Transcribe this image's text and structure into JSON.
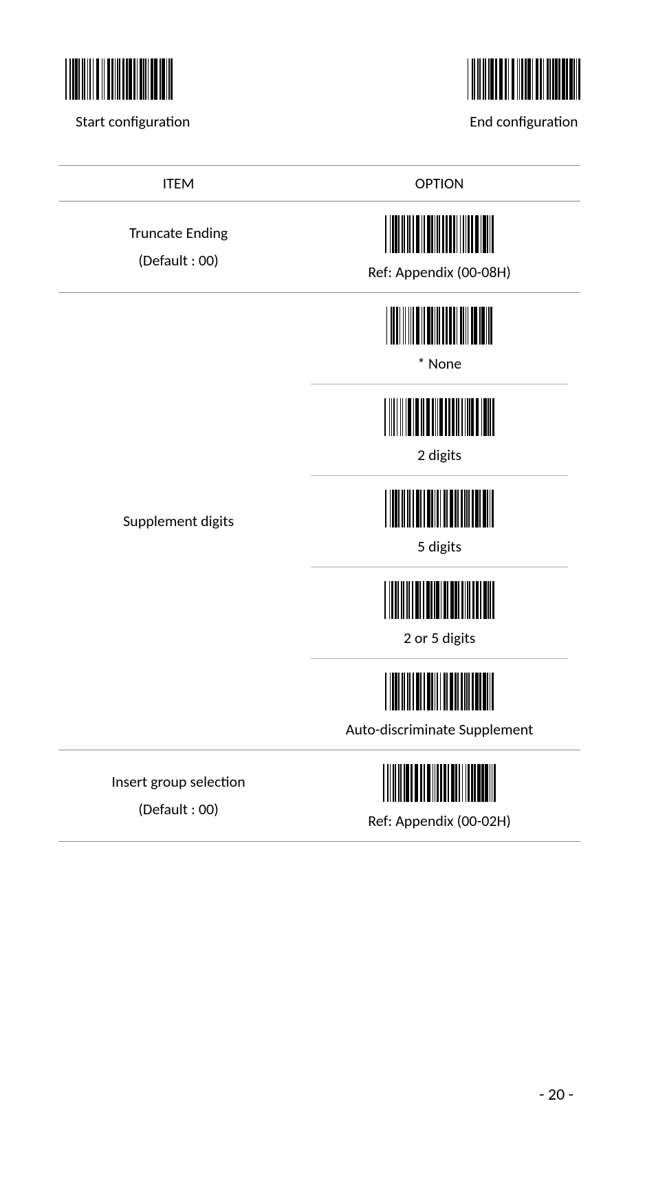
{
  "header": {
    "start": {
      "label": "Start configuration"
    },
    "end": {
      "label": "End configuration"
    }
  },
  "columns": {
    "item": "ITEM",
    "option": "OPTION"
  },
  "rows": [
    {
      "item_line1": "Truncate Ending",
      "item_line2": "(Default : 00)",
      "options": [
        {
          "label": "Ref: Appendix (00-08H)"
        }
      ]
    },
    {
      "item_line1": "Supplement digits",
      "item_line2": "",
      "options": [
        {
          "label": "* None"
        },
        {
          "label": "2 digits"
        },
        {
          "label": "5 digits"
        },
        {
          "label": "2 or 5 digits"
        },
        {
          "label": "Auto-discriminate Supplement"
        }
      ]
    },
    {
      "item_line1": "Insert group selection",
      "item_line2": "(Default : 00)",
      "options": [
        {
          "label": "Ref: Appendix (00-02H)"
        }
      ]
    }
  ],
  "page_number": "- 20 -",
  "barcode_patterns": {
    "p1": [
      1,
      3,
      1,
      1,
      2,
      1,
      2,
      1,
      1,
      2,
      1,
      1,
      1,
      2,
      1,
      1,
      1,
      2,
      1,
      2,
      3,
      2,
      1,
      1,
      1,
      2,
      3,
      1,
      2,
      1,
      1,
      1,
      1,
      1,
      1,
      2,
      2,
      1,
      2,
      1,
      3,
      1,
      2,
      1,
      1,
      2,
      2,
      1,
      1,
      1,
      1,
      1,
      1,
      2,
      2,
      1,
      3,
      2,
      1,
      1,
      3,
      1,
      1,
      1,
      1,
      1,
      2
    ],
    "p2": [
      1,
      3,
      1,
      1,
      1,
      2,
      1,
      1,
      1,
      2,
      1,
      1,
      1,
      2,
      1,
      1,
      3,
      1,
      2,
      2,
      3,
      2,
      2,
      1,
      1,
      2,
      3,
      2,
      1,
      1,
      1,
      1,
      2,
      1,
      2,
      1,
      3,
      1,
      1,
      2,
      3,
      1,
      2,
      1,
      1,
      2,
      2,
      1,
      1,
      1,
      2,
      1,
      2,
      1,
      2,
      1,
      3,
      1,
      2,
      1,
      3,
      1,
      1,
      1,
      1,
      1,
      2
    ],
    "p3": [
      1,
      3,
      1,
      1,
      2,
      1,
      2,
      1,
      1,
      2,
      1,
      1,
      1,
      2,
      1,
      1,
      1,
      2,
      1,
      2,
      3,
      2,
      1,
      1,
      1,
      2,
      3,
      1,
      2,
      1,
      1,
      1,
      1,
      1,
      1,
      2,
      2,
      1,
      2,
      1,
      3,
      1,
      2,
      1,
      1,
      2,
      1,
      2,
      1,
      1,
      1,
      1,
      2,
      1,
      2,
      2,
      3,
      2,
      1,
      1,
      3,
      1,
      1,
      1,
      1,
      1,
      2
    ],
    "p4": [
      1,
      3,
      1,
      1,
      2,
      1,
      2,
      1,
      1,
      2,
      1,
      1,
      1,
      2,
      1,
      1,
      1,
      1,
      1,
      2,
      3,
      2,
      1,
      1,
      1,
      2,
      3,
      1,
      2,
      1,
      1,
      1,
      1,
      1,
      1,
      2,
      2,
      1,
      2,
      1,
      3,
      1,
      2,
      1,
      1,
      2,
      2,
      1,
      1,
      1,
      1,
      1,
      1,
      2,
      2,
      1,
      3,
      2,
      1,
      1,
      3,
      1,
      1,
      1,
      1,
      1,
      2
    ],
    "p5": [
      1,
      3,
      1,
      1,
      1,
      1,
      1,
      2,
      1,
      2,
      1,
      1,
      1,
      2,
      1,
      1,
      3,
      2,
      1,
      1,
      3,
      2,
      1,
      1,
      1,
      2,
      3,
      2,
      2,
      1,
      1,
      1,
      1,
      1,
      3,
      2,
      2,
      1,
      2,
      1,
      3,
      1,
      1,
      1,
      1,
      2,
      1,
      2,
      1,
      1,
      1,
      1,
      1,
      1,
      2,
      2,
      3,
      2,
      1,
      1,
      3,
      1,
      1,
      1,
      1,
      1,
      2
    ],
    "p6": [
      1,
      3,
      1,
      1,
      2,
      1,
      2,
      1,
      1,
      2,
      1,
      1,
      1,
      2,
      1,
      1,
      1,
      2,
      1,
      2,
      3,
      1,
      1,
      2,
      1,
      2,
      3,
      1,
      2,
      1,
      1,
      1,
      2,
      1,
      1,
      2,
      2,
      1,
      1,
      2,
      3,
      1,
      2,
      1,
      1,
      2,
      2,
      1,
      1,
      1,
      1,
      1,
      1,
      2,
      2,
      1,
      3,
      1,
      1,
      2,
      3,
      1,
      1,
      1,
      1,
      1,
      2
    ],
    "p7": [
      1,
      3,
      1,
      1,
      2,
      1,
      2,
      1,
      1,
      2,
      1,
      1,
      1,
      2,
      1,
      1,
      1,
      2,
      1,
      2,
      3,
      1,
      1,
      2,
      1,
      2,
      3,
      1,
      2,
      1,
      1,
      1,
      3,
      1,
      1,
      2,
      2,
      1,
      1,
      2,
      3,
      1,
      2,
      1,
      1,
      2,
      2,
      1,
      1,
      1,
      1,
      1,
      1,
      2,
      2,
      1,
      3,
      1,
      1,
      2,
      3,
      1,
      1,
      1,
      1,
      1,
      2
    ],
    "p8": [
      1,
      3,
      1,
      1,
      2,
      1,
      2,
      1,
      1,
      2,
      1,
      1,
      1,
      2,
      1,
      1,
      1,
      2,
      1,
      2,
      3,
      1,
      1,
      2,
      1,
      2,
      3,
      1,
      2,
      1,
      1,
      1,
      1,
      2,
      1,
      2,
      2,
      1,
      1,
      2,
      3,
      1,
      2,
      1,
      1,
      2,
      2,
      1,
      1,
      1,
      1,
      1,
      1,
      2,
      2,
      1,
      3,
      1,
      2,
      1,
      3,
      1,
      1,
      1,
      1,
      1,
      2
    ],
    "p9": [
      1,
      3,
      1,
      1,
      1,
      2,
      1,
      1,
      1,
      2,
      1,
      1,
      1,
      2,
      1,
      1,
      3,
      1,
      2,
      2,
      3,
      2,
      2,
      1,
      1,
      2,
      3,
      2,
      1,
      1,
      1,
      1,
      2,
      1,
      2,
      1,
      3,
      1,
      1,
      2,
      3,
      1,
      2,
      1,
      1,
      2,
      1,
      2,
      1,
      1,
      2,
      1,
      2,
      1,
      2,
      1,
      3,
      1,
      2,
      1,
      3,
      1,
      1,
      1,
      1,
      1,
      2
    ]
  },
  "colors": {
    "text": "#000000",
    "background": "#ffffff",
    "border": "#888888"
  }
}
